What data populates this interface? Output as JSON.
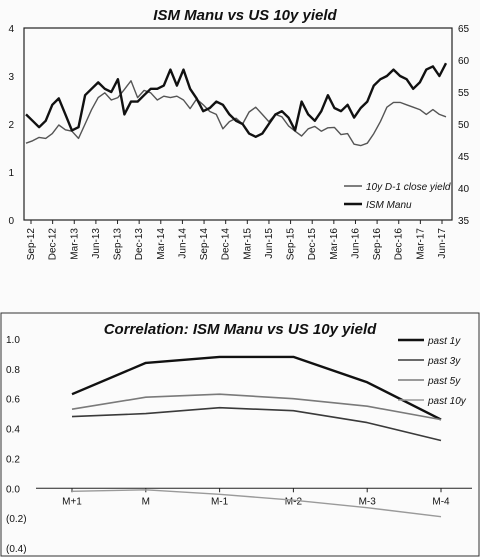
{
  "chart_data": [
    {
      "type": "line",
      "title": "ISM Manu vs US 10y yield",
      "x_tick_labels": [
        "Sep-12",
        "Dec-12",
        "Mar-13",
        "Jun-13",
        "Sep-13",
        "Dec-13",
        "Mar-14",
        "Jun-14",
        "Sep-14",
        "Dec-14",
        "Mar-15",
        "Jun-15",
        "Sep-15",
        "Dec-15",
        "Mar-16",
        "Jun-16",
        "Sep-16",
        "Dec-16",
        "Mar-17",
        "Jun-17"
      ],
      "y_left_ticks": [
        "0",
        "1",
        "2",
        "3",
        "4"
      ],
      "y_right_ticks": [
        "35",
        "40",
        "45",
        "50",
        "55",
        "60",
        "65"
      ],
      "ylim_left": [
        0,
        4
      ],
      "ylim_right": [
        35,
        65
      ],
      "legend_position": "bottom-right",
      "series": [
        {
          "name": "10y D-1 close yield",
          "axis": "left",
          "color": "#555555",
          "values": [
            1.6,
            1.65,
            1.72,
            1.7,
            1.8,
            1.98,
            1.88,
            1.85,
            1.7,
            2.0,
            2.3,
            2.55,
            2.65,
            2.5,
            2.55,
            2.72,
            2.9,
            2.55,
            2.7,
            2.65,
            2.5,
            2.58,
            2.55,
            2.58,
            2.5,
            2.32,
            2.52,
            2.4,
            2.26,
            2.2,
            1.9,
            2.05,
            2.12,
            2.0,
            2.25,
            2.35,
            2.2,
            2.05,
            2.2,
            2.15,
            1.96,
            1.85,
            1.75,
            1.9,
            1.95,
            1.85,
            1.92,
            1.93,
            1.78,
            1.8,
            1.58,
            1.55,
            1.6,
            1.8,
            2.05,
            2.35,
            2.45,
            2.45,
            2.4,
            2.35,
            2.3,
            2.2,
            2.3,
            2.2,
            2.15
          ]
        },
        {
          "name": "ISM Manu",
          "axis": "right",
          "color": "#111111",
          "values": [
            51.5,
            50.5,
            49.5,
            50.5,
            53.0,
            54.0,
            51.5,
            49.0,
            49.5,
            54.5,
            55.5,
            56.5,
            55.5,
            55.0,
            57.0,
            51.5,
            53.5,
            53.5,
            54.5,
            55.5,
            55.5,
            56.0,
            58.5,
            56.0,
            58.5,
            55.5,
            54.0,
            52.0,
            52.5,
            53.5,
            53.0,
            51.5,
            50.5,
            50.0,
            48.5,
            48.0,
            48.5,
            50.0,
            51.5,
            52.0,
            51.0,
            49.0,
            53.5,
            51.5,
            50.5,
            52.0,
            54.5,
            52.5,
            52.0,
            53.0,
            51.0,
            52.5,
            53.5,
            56.0,
            57.0,
            57.5,
            58.5,
            57.5,
            57.0,
            55.5,
            56.5,
            58.5,
            59.0,
            57.5,
            59.5
          ]
        }
      ]
    },
    {
      "type": "line",
      "title": "Correlation: ISM Manu vs US 10y yield",
      "categories": [
        "M+1",
        "M",
        "M-1",
        "M-2",
        "M-3",
        "M-4"
      ],
      "y_tick_labels": [
        "1.0",
        "0.8",
        "0.6",
        "0.4",
        "0.2",
        "0.0",
        "(0.2)",
        "(0.4)"
      ],
      "ylim": [
        -0.4,
        1.0
      ],
      "legend_position": "right",
      "series": [
        {
          "name": "past 1y",
          "color": "#111111",
          "values": [
            0.63,
            0.84,
            0.88,
            0.88,
            0.71,
            0.46
          ]
        },
        {
          "name": "past 3y",
          "color": "#3a3a3a",
          "values": [
            0.48,
            0.5,
            0.54,
            0.52,
            0.44,
            0.32
          ]
        },
        {
          "name": "past 5y",
          "color": "#7a7a7a",
          "values": [
            0.53,
            0.61,
            0.63,
            0.6,
            0.55,
            0.46
          ]
        },
        {
          "name": "past 10y",
          "color": "#9a9a9a",
          "values": [
            -0.02,
            -0.01,
            -0.04,
            -0.08,
            -0.13,
            -0.19
          ]
        }
      ]
    }
  ]
}
